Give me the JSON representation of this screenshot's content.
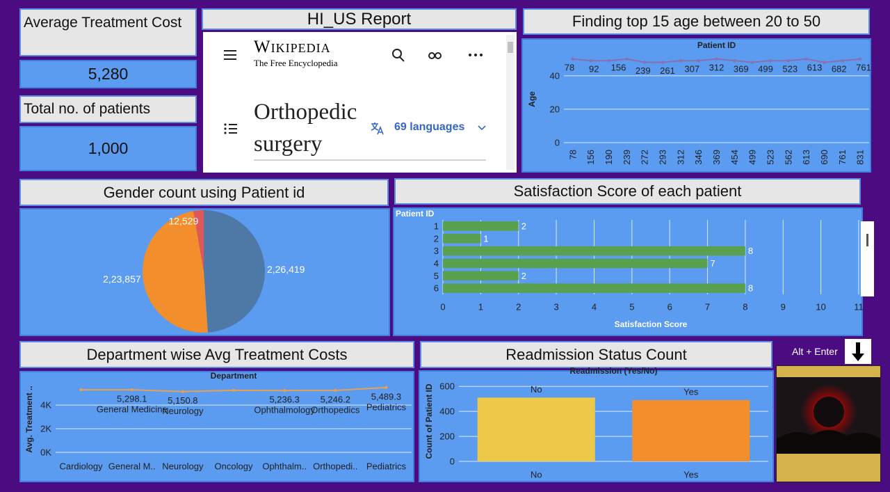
{
  "kpis": [
    {
      "title": "Average Treatment Cost",
      "value": "5,280"
    },
    {
      "title": "Total no. of patients",
      "value": "1,000"
    }
  ],
  "report": {
    "title": "HI_US Report",
    "wiki": {
      "logo": "Wikipedia",
      "tagline": "The Free Encyclopedia",
      "article": "Orthopedic surgery",
      "languages": "69 languages"
    }
  },
  "shortcut": "Alt + Enter",
  "chart_data": [
    {
      "type": "line",
      "title": "Finding top 15 age between 20 to 50",
      "x_label": "Patient ID",
      "y_label": "Age",
      "categories": [
        "78",
        "156",
        "190",
        "239",
        "272",
        "293",
        "312",
        "346",
        "369",
        "454",
        "499",
        "523",
        "562",
        "613",
        "690",
        "761",
        "831"
      ],
      "values": [
        50,
        49,
        49,
        50,
        48,
        48,
        49,
        49,
        50,
        49,
        48,
        49,
        49,
        50,
        48,
        49,
        50
      ],
      "labels": [
        "78",
        "92",
        "156",
        "239",
        "261",
        "307",
        "312",
        "369",
        "499",
        "523",
        "613",
        "682",
        "761"
      ],
      "color": "#8a6fb0",
      "ylim": [
        0,
        52
      ],
      "yticks": [
        0,
        20,
        40
      ],
      "grid": true
    },
    {
      "type": "pie",
      "title": "Gender count using Patient id",
      "values": [
        226419,
        223857,
        12529
      ],
      "value_labels": [
        "2,26,419",
        "2,23,857",
        "12,529"
      ],
      "colors": [
        "#4e79a7",
        "#f28e2b",
        "#e15759"
      ]
    },
    {
      "type": "bar",
      "orientation": "horizontal",
      "title": "Satisfaction Score of each patient",
      "x_label": "Satisfaction Score",
      "y_label": "Patient ID",
      "categories": [
        "1",
        "2",
        "3",
        "4",
        "5",
        "6"
      ],
      "values": [
        2,
        1,
        8,
        7,
        2,
        8
      ],
      "color": "#59a14f",
      "xlim": [
        0,
        11
      ],
      "xticks": [
        0,
        1,
        2,
        3,
        4,
        5,
        6,
        7,
        8,
        9,
        10,
        11
      ],
      "grid": true
    },
    {
      "type": "line",
      "title": "Department wise Avg Treatment Costs",
      "x_label": "Department",
      "y_label": "Avg. Treatment ..",
      "categories": [
        "Cardiology",
        "General M..",
        "Neurology",
        "Oncology",
        "Ophthalm..",
        "Orthopedi..",
        "Pediatrics"
      ],
      "values": [
        5300,
        5298.1,
        5150.8,
        5250,
        5236.3,
        5246.2,
        5489.3
      ],
      "value_labels": [
        null,
        "5,298.1",
        "5,150.8",
        null,
        "5,236.3",
        "5,246.2",
        "5,489.3"
      ],
      "point_labels": [
        null,
        "General Medicine",
        "Neurology",
        null,
        "Ophthalmology",
        "Orthopedics",
        "Pediatrics"
      ],
      "color": "#e8a050",
      "ylim": [
        0,
        5600
      ],
      "yticks": [
        {
          "value": 0,
          "label": "0K"
        },
        {
          "value": 2000,
          "label": "2K"
        },
        {
          "value": 4000,
          "label": "4K"
        }
      ],
      "grid": true
    },
    {
      "type": "bar",
      "title": "Readmission Status Count",
      "x_label": "Readmission (Yes/No)",
      "y_label": "Count of Patient ID",
      "categories": [
        "No",
        "Yes"
      ],
      "values": [
        510,
        490
      ],
      "colors": [
        "#edc948",
        "#f28e2b"
      ],
      "ylim": [
        0,
        640
      ],
      "yticks": [
        0,
        200,
        400,
        600
      ],
      "grid": true
    }
  ]
}
